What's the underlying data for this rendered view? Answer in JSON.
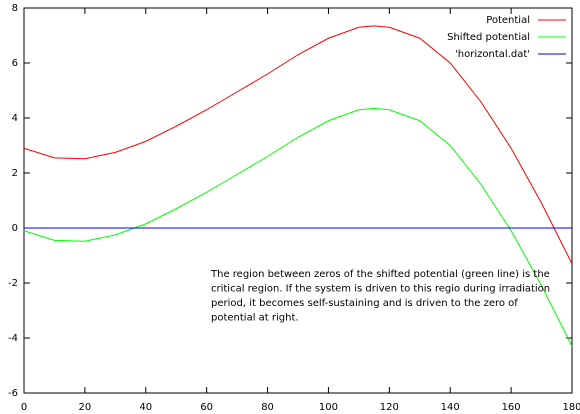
{
  "chart_data": {
    "type": "line",
    "x": [
      0,
      10,
      20,
      30,
      40,
      50,
      60,
      70,
      80,
      90,
      100,
      110,
      115,
      120,
      130,
      140,
      150,
      160,
      170,
      180
    ],
    "series": [
      {
        "name": "Potential",
        "color": "#ff0000",
        "values": [
          2.9,
          2.55,
          2.52,
          2.75,
          3.15,
          3.7,
          4.3,
          4.95,
          5.6,
          6.3,
          6.9,
          7.3,
          7.35,
          7.3,
          6.9,
          6.0,
          4.6,
          2.9,
          0.9,
          -1.3
        ]
      },
      {
        "name": "Shifted potential",
        "color": "#00ff00",
        "values": [
          -0.1,
          -0.45,
          -0.48,
          -0.25,
          0.15,
          0.7,
          1.3,
          1.95,
          2.6,
          3.3,
          3.9,
          4.3,
          4.35,
          4.3,
          3.9,
          3.0,
          1.6,
          -0.1,
          -2.1,
          -4.3
        ]
      },
      {
        "name": "'horizontal.dat'",
        "color": "#0000ff",
        "values": [
          0,
          0,
          0,
          0,
          0,
          0,
          0,
          0,
          0,
          0,
          0,
          0,
          0,
          0,
          0,
          0,
          0,
          0,
          0,
          0
        ]
      }
    ],
    "annotation": [
      "The region between zeros of the shifted potential (green line) is the",
      "critical region. If the system is driven to this regio during irradiation",
      "period, it becomes self-sustaining and is driven  to the zero  of",
      "potential at right."
    ],
    "xlim": [
      0,
      180
    ],
    "xticks": [
      0,
      20,
      40,
      60,
      80,
      100,
      120,
      140,
      160,
      180
    ],
    "ylim": [
      -6,
      8
    ],
    "yticks": [
      -6,
      -4,
      -2,
      0,
      2,
      4,
      6,
      8
    ],
    "legend": "top-right"
  }
}
